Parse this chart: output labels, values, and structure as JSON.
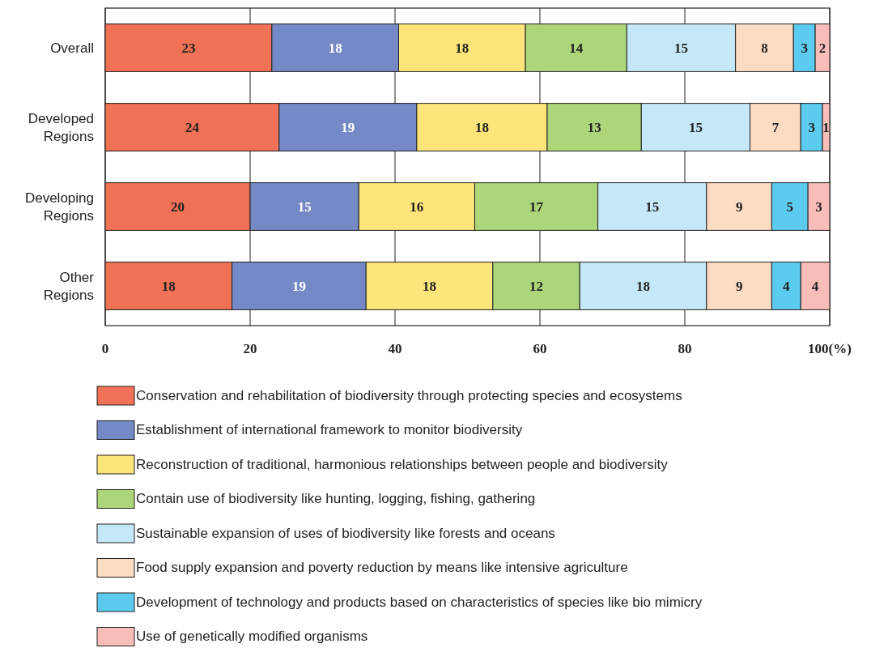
{
  "chart_data": {
    "type": "bar",
    "orientation": "horizontal",
    "stacked": true,
    "categories": [
      "Overall",
      "Developed Regions",
      "Developing Regions",
      "Other Regions"
    ],
    "series": [
      {
        "name": "Conservation and rehabilitation of biodiversity through protecting species and ecosystems",
        "color": "#f07155",
        "values": [
          23,
          24,
          20,
          17.5
        ],
        "value_labels": [
          "23",
          "24",
          "20",
          "18"
        ]
      },
      {
        "name": "Establishment of international framework to monitor biodiversity",
        "color": "#7589c6",
        "values": [
          17.5,
          19,
          15,
          18.5
        ],
        "value_labels": [
          "18",
          "19",
          "15",
          "19"
        ]
      },
      {
        "name": "Reconstruction of traditional, harmonious relationships between people and biodiversity",
        "color": "#fde57a",
        "values": [
          17.5,
          18,
          16,
          17.5
        ],
        "value_labels": [
          "18",
          "18",
          "16",
          "18"
        ]
      },
      {
        "name": "Contain use of biodiversity like hunting, logging, fishing, gathering",
        "color": "#add57a",
        "values": [
          14,
          13,
          17,
          12
        ],
        "value_labels": [
          "14",
          "13",
          "17",
          "12"
        ]
      },
      {
        "name": "Sustainable expansion of uses of biodiversity like forests and oceans",
        "color": "#c5e8f8",
        "values": [
          15,
          15,
          15,
          17.5
        ],
        "value_labels": [
          "15",
          "15",
          "15",
          "18"
        ]
      },
      {
        "name": "Food supply expansion and poverty reduction by means like intensive agriculture",
        "color": "#fddcc4",
        "values": [
          8,
          7,
          9,
          9
        ],
        "value_labels": [
          "8",
          "7",
          "9",
          "9"
        ]
      },
      {
        "name": "Development of technology and products based on characteristics of species like bio mimicry",
        "color": "#5ccbf0",
        "values": [
          3,
          3,
          5,
          4
        ],
        "value_labels": [
          "3",
          "3",
          "5",
          "4"
        ]
      },
      {
        "name": "Use of genetically modified organisms",
        "color": "#f8bcb9",
        "values": [
          2,
          1,
          3,
          4
        ],
        "value_labels": [
          "2",
          "1",
          "3",
          "4"
        ]
      }
    ],
    "xlim": [
      0,
      100
    ],
    "xticks": [
      0,
      20,
      40,
      60,
      80,
      {
        "value": 100,
        "label": "100(%)"
      }
    ],
    "grid": "x",
    "legend": "bottom"
  }
}
